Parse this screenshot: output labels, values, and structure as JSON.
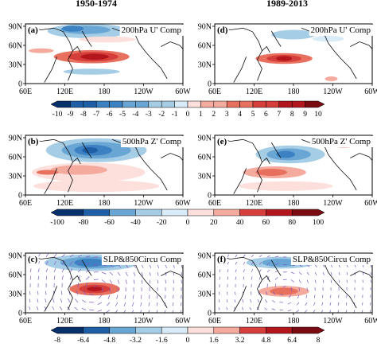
{
  "headers": {
    "left": "1950-1974",
    "right": "1989-2013"
  },
  "panels": [
    {
      "letter": "(a)",
      "title": "200hPa U' Comp"
    },
    {
      "letter": "(d)",
      "title": "200hPa U' Comp"
    },
    {
      "letter": "(b)",
      "title": "500hPa Z' Comp"
    },
    {
      "letter": "(e)",
      "title": "500hPa Z' Comp"
    },
    {
      "letter": "(c)",
      "title": "SLP&850Circu Comp"
    },
    {
      "letter": "(f)",
      "title": "SLP&850Circu Comp"
    }
  ],
  "map_axes": {
    "lat_labels": [
      "90N",
      "60N",
      "30N",
      "0"
    ],
    "lon_labels": [
      "60E",
      "120E",
      "180",
      "120W",
      "60W"
    ]
  },
  "colorbars": [
    {
      "labels": [
        "-10",
        "-9",
        "-8",
        "-7",
        "-6",
        "-5",
        "-4",
        "-3",
        "-2",
        "-1",
        "0",
        "1",
        "2",
        "3",
        "4",
        "5",
        "6",
        "7",
        "8",
        "9",
        "10"
      ]
    },
    {
      "labels": [
        "-100",
        "-80",
        "-60",
        "-40",
        "-20",
        "0",
        "20",
        "40",
        "60",
        "80",
        "100"
      ]
    },
    {
      "labels": [
        "-8",
        "-6.4",
        "-4.8",
        "-3.2",
        "-1.6",
        "0",
        "1.6",
        "3.2",
        "4.8",
        "6.4",
        "8"
      ]
    }
  ],
  "colors": {
    "negative": [
      "#08306b",
      "#1f5fa6",
      "#3c82c2",
      "#6aa6d3",
      "#a6cde6",
      "#d8ebf6"
    ],
    "positive": [
      "#fde0dc",
      "#f4aa9c",
      "#e8705f",
      "#d53e3a",
      "#b3171d",
      "#7a0b12"
    ],
    "vector": "#7e57c2"
  }
}
